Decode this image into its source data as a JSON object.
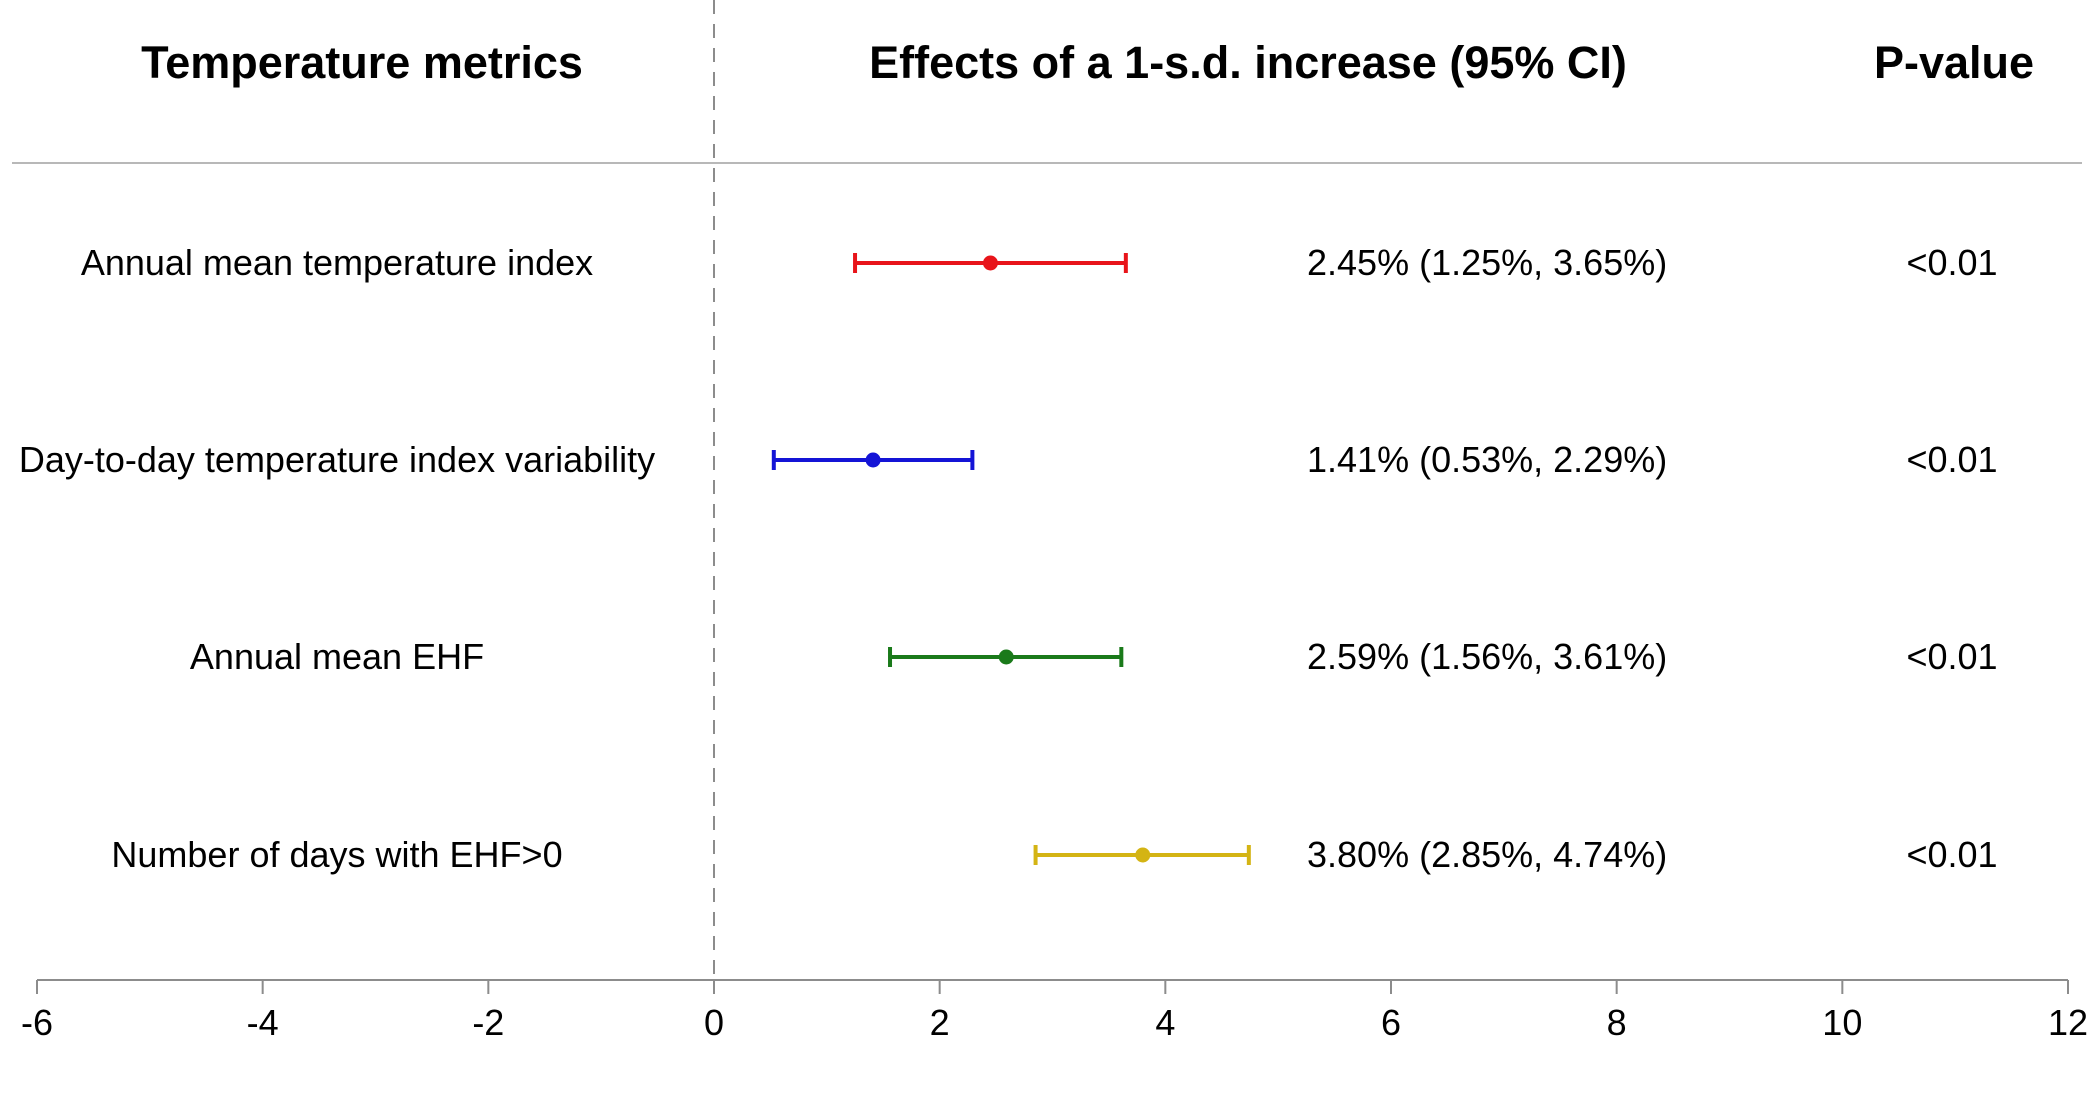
{
  "headers": {
    "metrics": "Temperature metrics",
    "effects": "Effects of a 1-s.d. increase (95% CI)",
    "pvalue": "P-value"
  },
  "chart_data": {
    "type": "forest",
    "xlim": [
      -6,
      12
    ],
    "xticks": [
      -6,
      -4,
      -2,
      0,
      2,
      4,
      6,
      8,
      10,
      12
    ],
    "reference_line": 0,
    "rows": [
      {
        "label": "Annual mean temperature index",
        "estimate": 2.45,
        "lower": 1.25,
        "upper": 3.65,
        "ci_text": "2.45% (1.25%, 3.65%)",
        "p": "<0.01",
        "color": "#e8141a"
      },
      {
        "label": "Day-to-day temperature index variability",
        "estimate": 1.41,
        "lower": 0.53,
        "upper": 2.29,
        "ci_text": "1.41% (0.53%, 2.29%)",
        "p": "<0.01",
        "color": "#1414d6"
      },
      {
        "label": "Annual mean EHF",
        "estimate": 2.59,
        "lower": 1.56,
        "upper": 3.61,
        "ci_text": "2.59% (1.56%, 3.61%)",
        "p": "<0.01",
        "color": "#1a7a1a"
      },
      {
        "label": "Number of days with EHF>0",
        "estimate": 3.8,
        "lower": 2.85,
        "upper": 4.74,
        "ci_text": "3.80% (2.85%, 4.74%)",
        "p": "<0.01",
        "color": "#d4b414"
      }
    ]
  }
}
